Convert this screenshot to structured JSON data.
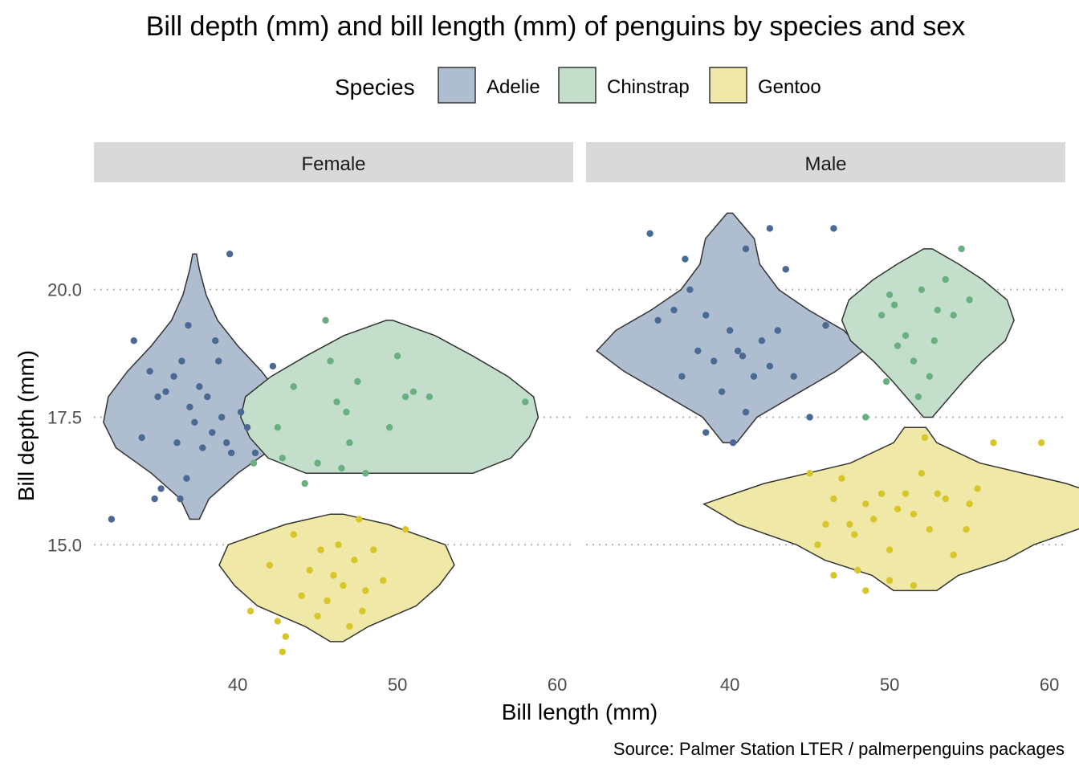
{
  "chart_data": {
    "type": "violin",
    "title": "Bill depth (mm) and bill length (mm) of penguins by species and sex",
    "xlabel": "Bill length (mm)",
    "ylabel": "Bill depth (mm)",
    "caption": "Source: Palmer Station LTER / palmerpenguins packages",
    "xlim": [
      31,
      61
    ],
    "ylim": [
      12.8,
      21.9
    ],
    "x_ticks": [
      40,
      50,
      60
    ],
    "y_ticks": [
      15.0,
      17.5,
      20.0
    ],
    "y_tick_labels": [
      "15.0",
      "17.5",
      "20.0"
    ],
    "grid": "horizontal major, dotted",
    "legend": {
      "title": "Species",
      "position": "top",
      "entries": [
        {
          "name": "Adelie",
          "fill": "#aebdcf",
          "point": "#4a6a93"
        },
        {
          "name": "Chinstrap",
          "fill": "#c3dfcc",
          "point": "#6aaf82"
        },
        {
          "name": "Gentoo",
          "fill": "#f0e8a6",
          "point": "#d6c62a"
        }
      ]
    },
    "facets": [
      {
        "label": "Female",
        "series": [
          {
            "name": "Adelie",
            "violin": {
              "x": 37.3,
              "half_width": 6.0,
              "density": [
                [
                  15.5,
                  0.05
                ],
                [
                  15.9,
                  0.15
                ],
                [
                  16.4,
                  0.45
                ],
                [
                  16.9,
                  0.82
                ],
                [
                  17.4,
                  0.95
                ],
                [
                  17.9,
                  0.9
                ],
                [
                  18.4,
                  0.7
                ],
                [
                  18.9,
                  0.45
                ],
                [
                  19.4,
                  0.24
                ],
                [
                  19.9,
                  0.12
                ],
                [
                  20.4,
                  0.05
                ],
                [
                  20.7,
                  0.02
                ]
              ]
            },
            "points": [
              [
                32.1,
                15.5
              ],
              [
                33.5,
                19.0
              ],
              [
                34.0,
                17.1
              ],
              [
                34.5,
                18.4
              ],
              [
                35.0,
                17.9
              ],
              [
                35.5,
                18.0
              ],
              [
                36.0,
                18.3
              ],
              [
                36.2,
                17.0
              ],
              [
                36.5,
                18.6
              ],
              [
                36.8,
                16.3
              ],
              [
                37.0,
                17.7
              ],
              [
                37.3,
                17.4
              ],
              [
                37.6,
                18.1
              ],
              [
                37.8,
                16.9
              ],
              [
                38.1,
                17.9
              ],
              [
                38.4,
                17.2
              ],
              [
                38.8,
                18.6
              ],
              [
                39.0,
                17.5
              ],
              [
                39.3,
                17.0
              ],
              [
                39.6,
                16.8
              ],
              [
                39.5,
                20.7
              ],
              [
                40.2,
                17.6
              ],
              [
                40.6,
                17.3
              ],
              [
                41.1,
                16.8
              ],
              [
                42.2,
                18.5
              ],
              [
                35.2,
                16.1
              ],
              [
                36.4,
                15.9
              ],
              [
                34.8,
                15.9
              ],
              [
                36.9,
                19.3
              ],
              [
                38.6,
                19.0
              ]
            ]
          },
          {
            "name": "Chinstrap",
            "violin": {
              "x": 49.5,
              "half_width": 9.5,
              "density": [
                [
                  16.4,
                  0.55
                ],
                [
                  16.7,
                  0.8
                ],
                [
                  17.1,
                  0.92
                ],
                [
                  17.5,
                  0.98
                ],
                [
                  17.9,
                  0.95
                ],
                [
                  18.3,
                  0.78
                ],
                [
                  18.7,
                  0.55
                ],
                [
                  19.1,
                  0.3
                ],
                [
                  19.4,
                  0.02
                ]
              ]
            },
            "points": [
              [
                41.0,
                16.6
              ],
              [
                42.5,
                17.3
              ],
              [
                43.5,
                18.1
              ],
              [
                45.0,
                16.6
              ],
              [
                45.5,
                19.4
              ],
              [
                45.8,
                18.6
              ],
              [
                46.2,
                17.8
              ],
              [
                46.5,
                16.5
              ],
              [
                47.0,
                17.0
              ],
              [
                47.5,
                18.2
              ],
              [
                48.0,
                16.4
              ],
              [
                49.5,
                17.3
              ],
              [
                50.0,
                18.7
              ],
              [
                50.5,
                17.9
              ],
              [
                51.0,
                18.0
              ],
              [
                52.0,
                17.9
              ],
              [
                58.0,
                17.8
              ],
              [
                46.8,
                17.6
              ],
              [
                44.2,
                16.2
              ],
              [
                42.8,
                16.7
              ]
            ]
          },
          {
            "name": "Gentoo",
            "violin": {
              "x": 46.2,
              "half_width": 8.0,
              "density": [
                [
                  13.1,
                  0.05
                ],
                [
                  13.4,
                  0.25
                ],
                [
                  13.8,
                  0.62
                ],
                [
                  14.2,
                  0.8
                ],
                [
                  14.6,
                  0.92
                ],
                [
                  15.0,
                  0.85
                ],
                [
                  15.4,
                  0.4
                ],
                [
                  15.6,
                  0.05
                ]
              ]
            },
            "points": [
              [
                40.8,
                13.7
              ],
              [
                42.0,
                14.6
              ],
              [
                42.5,
                13.5
              ],
              [
                43.0,
                13.2
              ],
              [
                43.5,
                15.2
              ],
              [
                44.0,
                14.0
              ],
              [
                44.5,
                14.5
              ],
              [
                45.0,
                13.6
              ],
              [
                45.2,
                14.9
              ],
              [
                45.6,
                13.9
              ],
              [
                46.0,
                14.4
              ],
              [
                46.3,
                15.0
              ],
              [
                46.6,
                14.2
              ],
              [
                47.0,
                13.4
              ],
              [
                47.3,
                14.7
              ],
              [
                47.6,
                15.5
              ],
              [
                48.0,
                14.1
              ],
              [
                48.5,
                14.9
              ],
              [
                49.1,
                14.3
              ],
              [
                50.5,
                15.3
              ],
              [
                42.8,
                12.9
              ],
              [
                47.8,
                13.7
              ]
            ]
          }
        ]
      },
      {
        "label": "Male",
        "series": [
          {
            "name": "Adelie",
            "violin": {
              "x": 40.0,
              "half_width": 8.5,
              "density": [
                [
                  17.0,
                  0.05
                ],
                [
                  17.5,
                  0.2
                ],
                [
                  18.0,
                  0.52
                ],
                [
                  18.4,
                  0.78
                ],
                [
                  18.8,
                  0.98
                ],
                [
                  19.2,
                  0.84
                ],
                [
                  19.6,
                  0.58
                ],
                [
                  20.0,
                  0.36
                ],
                [
                  20.5,
                  0.22
                ],
                [
                  21.0,
                  0.18
                ],
                [
                  21.5,
                  0.02
                ]
              ]
            },
            "points": [
              [
                35.0,
                21.1
              ],
              [
                35.5,
                19.4
              ],
              [
                36.5,
                19.6
              ],
              [
                37.0,
                18.3
              ],
              [
                37.5,
                20.0
              ],
              [
                38.0,
                18.8
              ],
              [
                38.5,
                19.5
              ],
              [
                39.0,
                18.6
              ],
              [
                39.5,
                18.0
              ],
              [
                40.0,
                19.2
              ],
              [
                40.5,
                18.8
              ],
              [
                41.0,
                17.6
              ],
              [
                41.5,
                18.3
              ],
              [
                42.0,
                19.0
              ],
              [
                42.5,
                18.5
              ],
              [
                43.0,
                19.2
              ],
              [
                43.5,
                20.4
              ],
              [
                44.0,
                18.3
              ],
              [
                46.0,
                19.3
              ],
              [
                46.5,
                21.2
              ],
              [
                40.2,
                17.0
              ],
              [
                38.5,
                17.2
              ],
              [
                42.5,
                21.2
              ],
              [
                41.0,
                20.8
              ],
              [
                37.2,
                20.6
              ],
              [
                45.0,
                17.5
              ],
              [
                40.8,
                18.7
              ]
            ]
          },
          {
            "name": "Chinstrap",
            "violin": {
              "x": 52.4,
              "half_width": 5.5,
              "density": [
                [
                  17.5,
                  0.05
                ],
                [
                  17.8,
                  0.2
                ],
                [
                  18.2,
                  0.4
                ],
                [
                  18.6,
                  0.62
                ],
                [
                  19.0,
                  0.88
                ],
                [
                  19.4,
                  0.98
                ],
                [
                  19.8,
                  0.9
                ],
                [
                  20.2,
                  0.62
                ],
                [
                  20.5,
                  0.35
                ],
                [
                  20.8,
                  0.05
                ]
              ]
            },
            "points": [
              [
                48.5,
                17.5
              ],
              [
                49.5,
                19.5
              ],
              [
                50.0,
                19.9
              ],
              [
                50.5,
                18.9
              ],
              [
                51.0,
                19.1
              ],
              [
                51.5,
                18.6
              ],
              [
                52.0,
                20.0
              ],
              [
                52.5,
                18.3
              ],
              [
                53.0,
                19.6
              ],
              [
                53.5,
                20.2
              ],
              [
                54.0,
                19.5
              ],
              [
                55.0,
                19.8
              ],
              [
                54.5,
                20.8
              ],
              [
                49.8,
                18.2
              ],
              [
                50.3,
                19.7
              ],
              [
                51.8,
                17.9
              ],
              [
                52.8,
                19.0
              ]
            ]
          },
          {
            "name": "Gentoo",
            "violin": {
              "x": 51.6,
              "half_width": 13.5,
              "density": [
                [
                  14.1,
                  0.1
                ],
                [
                  14.4,
                  0.2
                ],
                [
                  14.7,
                  0.42
                ],
                [
                  15.0,
                  0.55
                ],
                [
                  15.4,
                  0.82
                ],
                [
                  15.8,
                  0.98
                ],
                [
                  16.2,
                  0.7
                ],
                [
                  16.6,
                  0.3
                ],
                [
                  17.0,
                  0.1
                ],
                [
                  17.3,
                  0.05
                ]
              ]
            },
            "points": [
              [
                45.0,
                16.4
              ],
              [
                45.5,
                15.0
              ],
              [
                46.0,
                15.4
              ],
              [
                46.5,
                15.9
              ],
              [
                47.0,
                16.3
              ],
              [
                47.5,
                15.4
              ],
              [
                48.0,
                14.5
              ],
              [
                48.5,
                15.8
              ],
              [
                49.0,
                15.5
              ],
              [
                49.5,
                16.0
              ],
              [
                50.0,
                14.9
              ],
              [
                50.5,
                15.7
              ],
              [
                51.0,
                16.0
              ],
              [
                51.5,
                15.6
              ],
              [
                52.0,
                16.4
              ],
              [
                52.5,
                15.3
              ],
              [
                53.0,
                16.0
              ],
              [
                53.5,
                15.9
              ],
              [
                54.0,
                14.8
              ],
              [
                55.0,
                15.8
              ],
              [
                55.5,
                16.1
              ],
              [
                56.5,
                17.0
              ],
              [
                59.5,
                17.0
              ],
              [
                46.5,
                14.4
              ],
              [
                48.5,
                14.1
              ],
              [
                50.0,
                14.3
              ],
              [
                51.5,
                14.2
              ],
              [
                47.8,
                15.2
              ],
              [
                52.2,
                17.1
              ],
              [
                54.8,
                15.3
              ]
            ]
          }
        ]
      }
    ]
  }
}
